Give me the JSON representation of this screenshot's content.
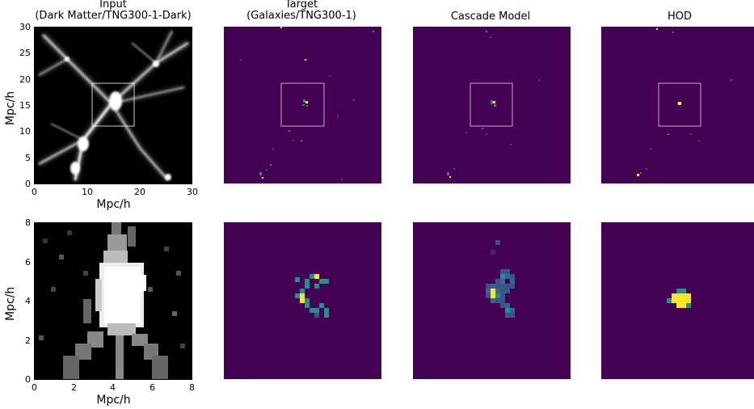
{
  "figure": {
    "titles": [
      "Input\n(Dark Matter/TNG300-1-Dark)",
      "Target\n(Galaxies/TNG300-1)",
      "Cascade Model",
      "HOD"
    ],
    "top_row": {
      "xlabel": "Mpc/h",
      "ylabel": "Mpc/h",
      "x_ticks": [
        "0",
        "10",
        "20",
        "30"
      ],
      "y_ticks": [
        "0",
        "5",
        "10",
        "15",
        "20",
        "25",
        "30"
      ]
    },
    "bottom_row": {
      "xlabel": "Mpc/h",
      "ylabel": "Mpc/h",
      "x_ticks": [
        "0",
        "2",
        "4",
        "6",
        "8"
      ],
      "y_ticks": [
        "0",
        "2",
        "4",
        "6",
        "8"
      ]
    },
    "colors": {
      "viridis_bg": "#440154",
      "viridis_mid": "#21918c",
      "viridis_high": "#fde725",
      "viridis_low": "#3b528b"
    }
  }
}
